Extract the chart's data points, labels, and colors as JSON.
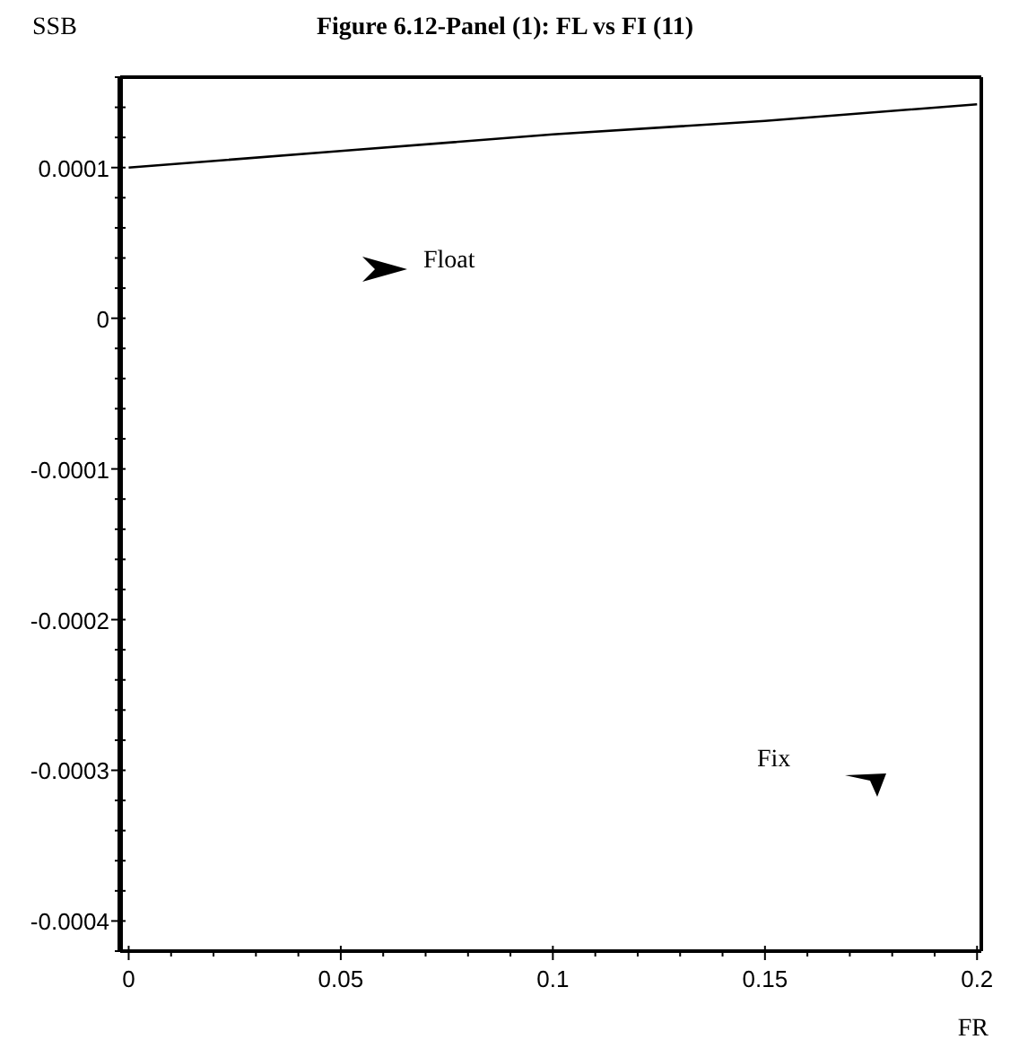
{
  "chart_data": {
    "type": "line",
    "title": "Figure 6.12-Panel (1): FL vs FI (11)",
    "xlabel": "FR",
    "ylabel": "SSB",
    "annotations": [
      "Float",
      "Fix"
    ],
    "x": [
      0,
      0.05,
      0.1,
      0.15,
      0.2
    ],
    "series": [
      {
        "color": "#000000",
        "values": [
          0.0001,
          0.000111,
          0.000122,
          0.000131,
          0.000142
        ]
      }
    ],
    "xlim": [
      -0.002,
      0.201
    ],
    "xticks": [
      {
        "value": 0,
        "label": "0"
      },
      {
        "value": 0.01,
        "label": null
      },
      {
        "value": 0.02,
        "label": null
      },
      {
        "value": 0.03,
        "label": null
      },
      {
        "value": 0.04,
        "label": null
      },
      {
        "value": 0.05,
        "label": "0.05"
      },
      {
        "value": 0.06,
        "label": null
      },
      {
        "value": 0.07,
        "label": null
      },
      {
        "value": 0.08,
        "label": null
      },
      {
        "value": 0.09,
        "label": null
      },
      {
        "value": 0.1,
        "label": "0.1"
      },
      {
        "value": 0.11,
        "label": null
      },
      {
        "value": 0.12,
        "label": null
      },
      {
        "value": 0.13,
        "label": null
      },
      {
        "value": 0.14,
        "label": null
      },
      {
        "value": 0.15,
        "label": "0.15"
      },
      {
        "value": 0.16,
        "label": null
      },
      {
        "value": 0.17,
        "label": null
      },
      {
        "value": 0.18,
        "label": null
      },
      {
        "value": 0.19,
        "label": null
      },
      {
        "value": 0.2,
        "label": "0.2"
      }
    ],
    "ylim": [
      -0.00042,
      0.00016
    ],
    "yticks": [
      {
        "value": -0.00042,
        "label": null
      },
      {
        "value": -0.0004,
        "label": "-0.0004"
      },
      {
        "value": -0.00038,
        "label": null
      },
      {
        "value": -0.00036,
        "label": null
      },
      {
        "value": -0.00034,
        "label": null
      },
      {
        "value": -0.00032,
        "label": null
      },
      {
        "value": -0.0003,
        "label": "-0.0003"
      },
      {
        "value": -0.00028,
        "label": null
      },
      {
        "value": -0.00026,
        "label": null
      },
      {
        "value": -0.00024,
        "label": null
      },
      {
        "value": -0.00022,
        "label": null
      },
      {
        "value": -0.0002,
        "label": "-0.0002"
      },
      {
        "value": -0.00018,
        "label": null
      },
      {
        "value": -0.00016,
        "label": null
      },
      {
        "value": -0.00014,
        "label": null
      },
      {
        "value": -0.00012,
        "label": null
      },
      {
        "value": -0.0001,
        "label": "-0.0001"
      },
      {
        "value": -8e-05,
        "label": null
      },
      {
        "value": -6e-05,
        "label": null
      },
      {
        "value": -4e-05,
        "label": null
      },
      {
        "value": -2e-05,
        "label": null
      },
      {
        "value": 0,
        "label": "0"
      },
      {
        "value": 2e-05,
        "label": null
      },
      {
        "value": 4e-05,
        "label": null
      },
      {
        "value": 6e-05,
        "label": null
      },
      {
        "value": 8e-05,
        "label": null
      },
      {
        "value": 0.0001,
        "label": "0.0001"
      },
      {
        "value": 0.00012,
        "label": null
      },
      {
        "value": 0.00014,
        "label": null
      },
      {
        "value": 0.00016,
        "label": null
      }
    ],
    "grid": false,
    "marker": "none",
    "line_style": "solid"
  }
}
